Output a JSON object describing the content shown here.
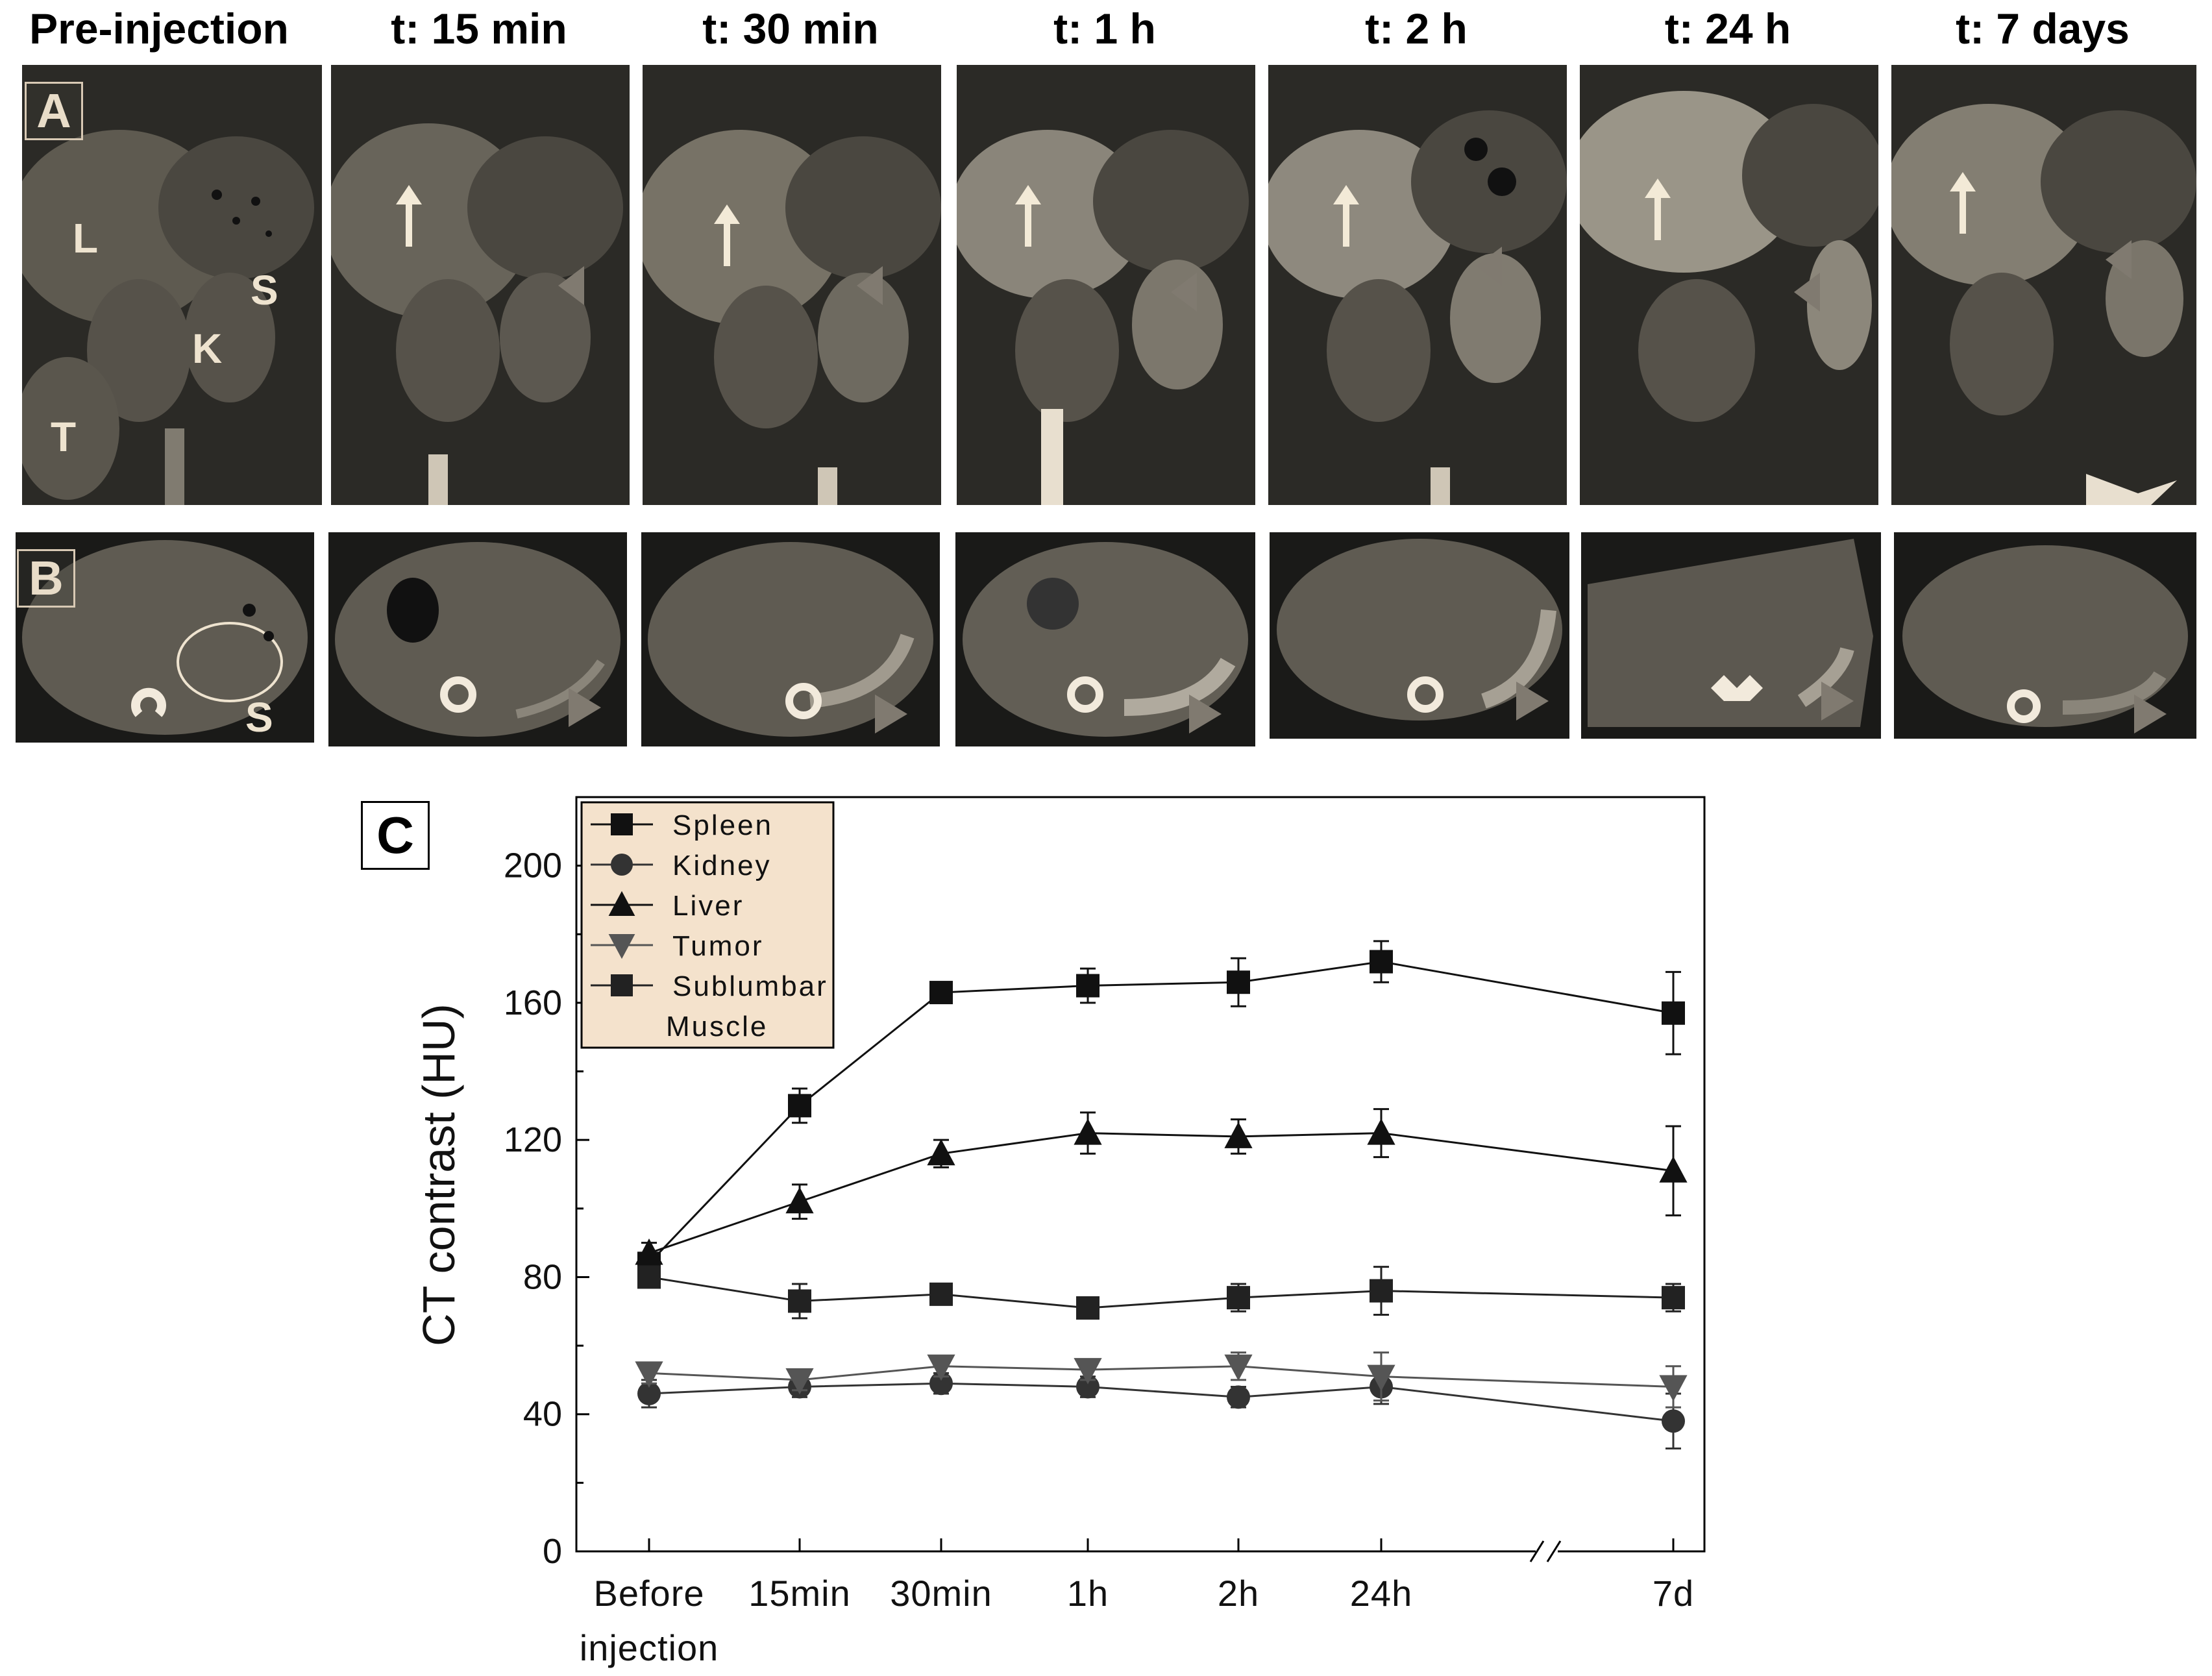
{
  "panels": {
    "column_headers": [
      "Pre-injection",
      "t: 15 min",
      "t: 30 min",
      "t: 1 h",
      "t: 2 h",
      "t: 24 h",
      "t: 7 days"
    ],
    "row_a_letter": "A",
    "row_b_letter": "B",
    "panel_c_letter": "C",
    "organ_labels": {
      "liver": "L",
      "spleen": "S",
      "kidney": "K",
      "tumor": "T",
      "spleen_axial": "S"
    }
  },
  "colors": {
    "tissue": "#6e6a5e",
    "bone": "#f2eadc",
    "background": "#1a1a18",
    "arrow": "#f3ead7",
    "arrowhead": "#807a70",
    "legend_bg": "#f4e2cc"
  },
  "chart_data": {
    "type": "line",
    "ylabel": "CT contrast (HU)",
    "xlabel": "",
    "categories": [
      "Before\ninjection",
      "15min",
      "30min",
      "1h",
      "2h",
      "24h",
      "7d"
    ],
    "ylim": [
      0,
      220
    ],
    "yticks": [
      0,
      40,
      80,
      120,
      160,
      200
    ],
    "axis_break_between": [
      "24h",
      "7d"
    ],
    "legend_placement": "top-left",
    "series": [
      {
        "name": "Spleen",
        "marker": "square",
        "color": "#111111",
        "values": [
          84,
          130,
          163,
          165,
          166,
          172,
          157
        ],
        "errors": [
          3,
          5,
          3,
          5,
          7,
          6,
          12
        ]
      },
      {
        "name": "Kidney",
        "marker": "circle",
        "color": "#333333",
        "values": [
          46,
          48,
          49,
          48,
          45,
          48,
          38
        ],
        "errors": [
          4,
          3,
          3,
          3,
          3,
          5,
          8
        ]
      },
      {
        "name": "Liver",
        "marker": "triangle-up",
        "color": "#111111",
        "values": [
          87,
          102,
          116,
          122,
          121,
          122,
          111
        ],
        "errors": [
          3,
          5,
          4,
          6,
          5,
          7,
          13
        ]
      },
      {
        "name": "Tumor",
        "marker": "triangle-down",
        "color": "#555555",
        "values": [
          52,
          50,
          54,
          53,
          54,
          51,
          48
        ],
        "errors": [
          3,
          3,
          3,
          3,
          4,
          7,
          6
        ]
      },
      {
        "name": "Sublumbar\nMuscle",
        "marker": "square",
        "color": "#222222",
        "values": [
          80,
          73,
          75,
          71,
          74,
          76,
          74
        ],
        "errors": [
          3,
          5,
          3,
          3,
          4,
          7,
          4
        ]
      }
    ]
  }
}
